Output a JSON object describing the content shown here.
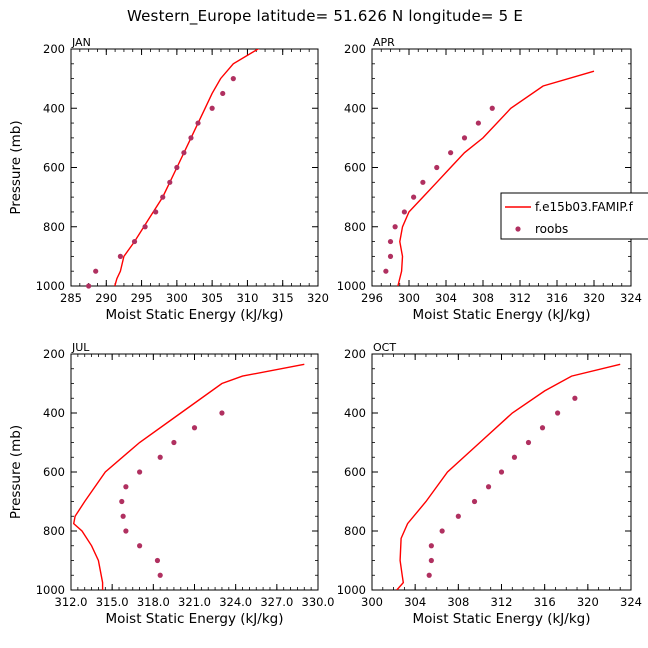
{
  "suptitle": "Western_Europe  latitude= 51.626 N longitude= 5 E",
  "legend": {
    "model_label": "f.e15b03.FAMIP.f",
    "obs_label": "roobs"
  },
  "colors": {
    "model": "#ff0000",
    "obs": "#b03060",
    "axis": "#000000"
  },
  "chart_data": [
    {
      "type": "scatter",
      "title": "JAN",
      "xlabel": "Moist Static Energy (kJ/kg)",
      "ylabel": "Pressure (mb)",
      "xlim": [
        285,
        320
      ],
      "ylim": [
        1000,
        200
      ],
      "xticks": [
        "285",
        "290",
        "295",
        "300",
        "305",
        "310",
        "315",
        "320"
      ],
      "yticks": [
        "200",
        "400",
        "600",
        "800",
        "1000"
      ],
      "series": [
        {
          "name": "f.e15b03.FAMIP.f",
          "kind": "line",
          "x": [
            291.2,
            291.5,
            292.0,
            292.5,
            294.0,
            296.0,
            298.0,
            300.0,
            302.0,
            304.0,
            305.0,
            306.2,
            308.0,
            311.5,
            317.0
          ],
          "y": [
            1000,
            975,
            950,
            900,
            850,
            775,
            700,
            600,
            500,
            400,
            350,
            300,
            250,
            200,
            150
          ]
        },
        {
          "name": "roobs",
          "kind": "scatter",
          "x": [
            287.5,
            288.5,
            292.0,
            294.0,
            295.5,
            297.0,
            298.0,
            299.0,
            300.0,
            301.0,
            302.0,
            303.0,
            305.0,
            306.5,
            308.0
          ],
          "y": [
            1000,
            950,
            900,
            850,
            800,
            750,
            700,
            650,
            600,
            550,
            500,
            450,
            400,
            350,
            300
          ]
        }
      ]
    },
    {
      "type": "scatter",
      "title": "APR",
      "xlabel": "Moist Static Energy (kJ/kg)",
      "ylabel": "Pressure (mb)",
      "xlim": [
        296,
        324
      ],
      "ylim": [
        1000,
        200
      ],
      "xticks": [
        "296",
        "300",
        "304",
        "308",
        "312",
        "316",
        "320",
        "324"
      ],
      "yticks": [
        "200",
        "400",
        "600",
        "800",
        "1000"
      ],
      "series": [
        {
          "name": "f.e15b03.FAMIP.f",
          "kind": "line",
          "x": [
            298.8,
            299.2,
            299.3,
            299.0,
            299.3,
            300.0,
            301.5,
            303.0,
            304.5,
            306.0,
            308.0,
            311.0,
            314.5,
            320.0
          ],
          "y": [
            1000,
            950,
            900,
            850,
            800,
            750,
            700,
            650,
            600,
            550,
            500,
            400,
            325,
            275
          ]
        },
        {
          "name": "roobs",
          "kind": "scatter",
          "x": [
            297.5,
            298.0,
            298.0,
            298.5,
            299.5,
            300.5,
            301.5,
            303.0,
            304.5,
            306.0,
            307.5,
            309.0
          ],
          "y": [
            950,
            900,
            850,
            800,
            750,
            700,
            650,
            600,
            550,
            500,
            450,
            400
          ]
        }
      ]
    },
    {
      "type": "scatter",
      "title": "JUL",
      "xlabel": "Moist Static Energy (kJ/kg)",
      "ylabel": "Pressure (mb)",
      "xlim": [
        312,
        330
      ],
      "ylim": [
        1000,
        200
      ],
      "xticks": [
        "312.0",
        "315.0",
        "318.0",
        "321.0",
        "324.0",
        "327.0",
        "330.0"
      ],
      "yticks": [
        "200",
        "400",
        "600",
        "800",
        "1000"
      ],
      "series": [
        {
          "name": "f.e15b03.FAMIP.f",
          "kind": "line",
          "x": [
            314.3,
            314.3,
            314.0,
            313.5,
            312.8,
            312.2,
            312.3,
            313.0,
            314.5,
            317.0,
            320.0,
            323.0,
            324.5,
            329.0
          ],
          "y": [
            1000,
            975,
            900,
            850,
            800,
            775,
            750,
            700,
            600,
            500,
            400,
            300,
            275,
            235
          ]
        },
        {
          "name": "roobs",
          "kind": "scatter",
          "x": [
            318.5,
            318.3,
            317.0,
            316.0,
            315.8,
            315.7,
            316.0,
            317.0,
            318.5,
            319.5,
            321.0,
            323.0
          ],
          "y": [
            950,
            900,
            850,
            800,
            750,
            700,
            650,
            600,
            550,
            500,
            450,
            400
          ]
        }
      ]
    },
    {
      "type": "scatter",
      "title": "OCT",
      "xlabel": "Moist Static Energy (kJ/kg)",
      "ylabel": "Pressure (mb)",
      "xlim": [
        300,
        324
      ],
      "ylim": [
        1000,
        200
      ],
      "xticks": [
        "300",
        "304",
        "308",
        "312",
        "316",
        "320",
        "324"
      ],
      "yticks": [
        "200",
        "400",
        "600",
        "800",
        "1000"
      ],
      "series": [
        {
          "name": "f.e15b03.FAMIP.f",
          "kind": "line",
          "x": [
            302.3,
            302.9,
            302.8,
            302.6,
            302.7,
            303.3,
            305.0,
            307.0,
            310.0,
            313.0,
            316.0,
            318.5,
            323.0
          ],
          "y": [
            1000,
            975,
            950,
            900,
            825,
            775,
            700,
            600,
            500,
            400,
            325,
            275,
            235
          ]
        },
        {
          "name": "roobs",
          "kind": "scatter",
          "x": [
            305.3,
            305.5,
            305.5,
            306.5,
            308.0,
            309.5,
            310.8,
            312.0,
            313.2,
            314.5,
            315.8,
            317.2,
            318.8
          ],
          "y": [
            950,
            900,
            850,
            800,
            750,
            700,
            650,
            600,
            550,
            500,
            450,
            400,
            350
          ]
        }
      ]
    }
  ]
}
